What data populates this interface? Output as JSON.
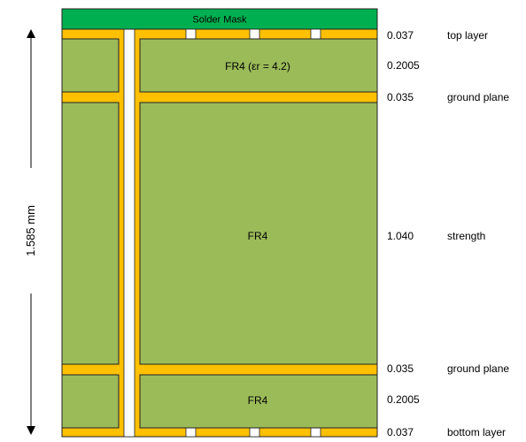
{
  "colors": {
    "copper": "#ffc000",
    "fr4": "#9bbb59",
    "solder_mask": "#00b050",
    "outline": "#222222"
  },
  "stack": {
    "solder_mask_label": "Solder Mask",
    "top_dielectric_label": "FR4 (εr = 4.2)",
    "core_label": "FR4",
    "bottom_dielectric_label": "FR4"
  },
  "dimension": {
    "total_thickness": "1.585 mm"
  },
  "layers": [
    {
      "thickness": "0.037",
      "name": "top layer"
    },
    {
      "thickness": "0.2005",
      "name": ""
    },
    {
      "thickness": "0.035",
      "name": "ground plane"
    },
    {
      "thickness": "1.040",
      "name": "strength"
    },
    {
      "thickness": "0.035",
      "name": "ground plane"
    },
    {
      "thickness": "0.2005",
      "name": ""
    },
    {
      "thickness": "0.037",
      "name": "bottom layer"
    }
  ]
}
